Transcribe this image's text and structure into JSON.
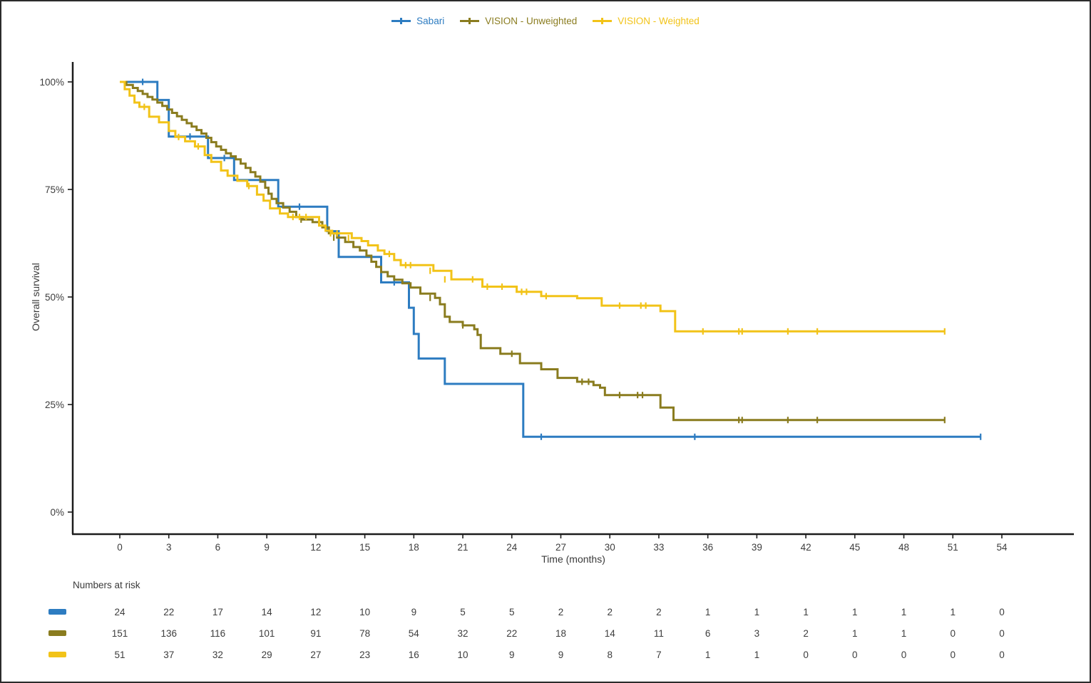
{
  "figure": {
    "x_axis_title": "Time (months)",
    "y_axis_title": "Overall survival"
  },
  "chart_data": {
    "type": "line",
    "subtype": "kaplan-meier-step",
    "title": "",
    "xlabel": "Time (months)",
    "ylabel": "Overall survival",
    "xlim": [
      0,
      57
    ],
    "ylim": [
      0,
      100
    ],
    "grid": false,
    "legend_position": "top-center",
    "x_ticks": [
      0,
      3,
      6,
      9,
      12,
      15,
      18,
      21,
      24,
      27,
      30,
      33,
      36,
      39,
      42,
      45,
      48,
      51,
      54
    ],
    "y_ticks": [
      {
        "value": 100,
        "label": "100%"
      },
      {
        "value": 75,
        "label": "75%"
      },
      {
        "value": 50,
        "label": "50%"
      },
      {
        "value": 25,
        "label": "25%"
      },
      {
        "value": 0,
        "label": "0%"
      }
    ],
    "axis_color": "#1c1c1c",
    "text_color": "#3d3d3d",
    "series": [
      {
        "name": "Sabari",
        "color": "#2d7cc1",
        "steps": [
          [
            0,
            100
          ],
          [
            2.3,
            95.8
          ],
          [
            3.0,
            87.3
          ],
          [
            5.4,
            82.3
          ],
          [
            7.0,
            77.2
          ],
          [
            9.7,
            71.0
          ],
          [
            12.7,
            65.3
          ],
          [
            13.4,
            59.3
          ],
          [
            16.0,
            53.4
          ],
          [
            17.7,
            47.5
          ],
          [
            18.0,
            41.4
          ],
          [
            18.3,
            35.7
          ],
          [
            19.9,
            29.8
          ],
          [
            24.7,
            17.5
          ],
          [
            52.7,
            17.5
          ]
        ],
        "censor_marks": [
          [
            1.4,
            100
          ],
          [
            4.3,
            87.3
          ],
          [
            6.4,
            82.3
          ],
          [
            11.0,
            71.0
          ],
          [
            16.8,
            53.4
          ],
          [
            25.8,
            17.5
          ],
          [
            35.2,
            17.5
          ],
          [
            52.7,
            17.5
          ]
        ]
      },
      {
        "name": "VISION - Unweighted",
        "color": "#8a7c1f",
        "steps": [
          [
            0,
            100
          ],
          [
            0.4,
            99.3
          ],
          [
            0.8,
            98.6
          ],
          [
            1.1,
            97.9
          ],
          [
            1.4,
            97.2
          ],
          [
            1.7,
            96.5
          ],
          [
            2.0,
            95.9
          ],
          [
            2.3,
            95.2
          ],
          [
            2.6,
            94.4
          ],
          [
            2.9,
            93.6
          ],
          [
            3.2,
            92.8
          ],
          [
            3.5,
            92.0
          ],
          [
            3.8,
            91.2
          ],
          [
            4.1,
            90.4
          ],
          [
            4.4,
            89.6
          ],
          [
            4.7,
            88.8
          ],
          [
            5.0,
            88.0
          ],
          [
            5.3,
            87.0
          ],
          [
            5.6,
            86.0
          ],
          [
            5.9,
            85.0
          ],
          [
            6.2,
            84.2
          ],
          [
            6.5,
            83.4
          ],
          [
            6.8,
            82.7
          ],
          [
            7.1,
            82.0
          ],
          [
            7.4,
            81.0
          ],
          [
            7.7,
            80.0
          ],
          [
            8.0,
            79.0
          ],
          [
            8.3,
            78.0
          ],
          [
            8.6,
            76.8
          ],
          [
            8.9,
            75.4
          ],
          [
            9.1,
            74.0
          ],
          [
            9.3,
            72.8
          ],
          [
            9.6,
            71.8
          ],
          [
            10.0,
            70.8
          ],
          [
            10.4,
            69.8
          ],
          [
            10.8,
            68.6
          ],
          [
            11.2,
            68.0
          ],
          [
            11.8,
            67.4
          ],
          [
            12.4,
            66.2
          ],
          [
            12.8,
            64.8
          ],
          [
            13.3,
            63.8
          ],
          [
            13.8,
            62.8
          ],
          [
            14.3,
            61.6
          ],
          [
            14.7,
            60.8
          ],
          [
            15.1,
            59.6
          ],
          [
            15.4,
            58.2
          ],
          [
            15.7,
            57.0
          ],
          [
            16.0,
            55.8
          ],
          [
            16.4,
            54.8
          ],
          [
            16.8,
            54.0
          ],
          [
            17.3,
            53.2
          ],
          [
            17.8,
            52.2
          ],
          [
            18.4,
            50.8
          ],
          [
            19.3,
            49.8
          ],
          [
            19.6,
            48.3
          ],
          [
            19.9,
            45.4
          ],
          [
            20.2,
            44.2
          ],
          [
            21.0,
            43.4
          ],
          [
            21.7,
            42.5
          ],
          [
            21.9,
            41.2
          ],
          [
            22.1,
            38.1
          ],
          [
            23.3,
            36.8
          ],
          [
            24.5,
            34.6
          ],
          [
            25.8,
            33.2
          ],
          [
            26.8,
            31.2
          ],
          [
            28.0,
            30.3
          ],
          [
            29.0,
            29.5
          ],
          [
            29.4,
            28.9
          ],
          [
            29.7,
            27.2
          ],
          [
            33.1,
            24.3
          ],
          [
            33.9,
            21.4
          ],
          [
            50.5,
            21.4
          ]
        ],
        "censor_marks": [
          [
            11.1,
            68.0
          ],
          [
            13.1,
            63.8
          ],
          [
            19.0,
            49.8
          ],
          [
            21.0,
            43.4
          ],
          [
            24.0,
            36.8
          ],
          [
            28.3,
            30.3
          ],
          [
            28.7,
            30.3
          ],
          [
            30.6,
            27.2
          ],
          [
            31.7,
            27.2
          ],
          [
            32.0,
            27.2
          ],
          [
            37.9,
            21.4
          ],
          [
            38.1,
            21.4
          ],
          [
            40.9,
            21.4
          ],
          [
            42.7,
            21.4
          ],
          [
            50.5,
            21.4
          ]
        ]
      },
      {
        "name": "VISION - Weighted",
        "color": "#f2c318",
        "steps": [
          [
            0,
            100
          ],
          [
            0.3,
            98.3
          ],
          [
            0.6,
            96.8
          ],
          [
            0.9,
            95.2
          ],
          [
            1.2,
            94.2
          ],
          [
            1.8,
            91.9
          ],
          [
            2.4,
            90.6
          ],
          [
            3.0,
            88.6
          ],
          [
            3.4,
            87.2
          ],
          [
            4.0,
            86.2
          ],
          [
            4.6,
            85.0
          ],
          [
            5.2,
            83.0
          ],
          [
            5.6,
            81.4
          ],
          [
            6.2,
            79.4
          ],
          [
            6.6,
            78.2
          ],
          [
            7.2,
            77.0
          ],
          [
            7.8,
            75.8
          ],
          [
            8.4,
            73.8
          ],
          [
            8.8,
            72.4
          ],
          [
            9.2,
            70.6
          ],
          [
            9.8,
            69.4
          ],
          [
            10.3,
            68.6
          ],
          [
            12.2,
            66.6
          ],
          [
            12.6,
            65.4
          ],
          [
            13.0,
            64.8
          ],
          [
            14.2,
            63.7
          ],
          [
            14.8,
            63.0
          ],
          [
            15.2,
            62.0
          ],
          [
            15.8,
            60.8
          ],
          [
            16.2,
            60.0
          ],
          [
            16.8,
            58.6
          ],
          [
            17.2,
            57.4
          ],
          [
            19.2,
            56.1
          ],
          [
            20.3,
            54.1
          ],
          [
            22.2,
            52.4
          ],
          [
            24.3,
            51.2
          ],
          [
            25.8,
            50.2
          ],
          [
            28.0,
            49.7
          ],
          [
            29.5,
            48.0
          ],
          [
            33.1,
            46.7
          ],
          [
            34.0,
            42.0
          ],
          [
            50.5,
            42.0
          ]
        ],
        "censor_marks": [
          [
            1.5,
            94.2
          ],
          [
            3.6,
            87.2
          ],
          [
            4.8,
            85.0
          ],
          [
            7.9,
            75.8
          ],
          [
            10.6,
            68.6
          ],
          [
            11.0,
            68.6
          ],
          [
            11.4,
            68.6
          ],
          [
            12.9,
            64.8
          ],
          [
            13.3,
            64.8
          ],
          [
            14.0,
            63.7
          ],
          [
            16.5,
            60.0
          ],
          [
            17.5,
            57.4
          ],
          [
            17.8,
            57.4
          ],
          [
            19.0,
            56.1
          ],
          [
            19.9,
            54.1
          ],
          [
            21.6,
            54.1
          ],
          [
            22.5,
            52.4
          ],
          [
            23.4,
            52.4
          ],
          [
            24.6,
            51.2
          ],
          [
            24.9,
            51.2
          ],
          [
            26.1,
            50.2
          ],
          [
            30.6,
            48.0
          ],
          [
            31.9,
            48.0
          ],
          [
            32.2,
            48.0
          ],
          [
            35.7,
            42.0
          ],
          [
            37.9,
            42.0
          ],
          [
            38.1,
            42.0
          ],
          [
            40.9,
            42.0
          ],
          [
            42.7,
            42.0
          ],
          [
            50.5,
            42.0
          ]
        ]
      }
    ],
    "numbers_at_risk": {
      "header": "Numbers at risk",
      "times": [
        0,
        3,
        6,
        9,
        12,
        15,
        18,
        21,
        24,
        27,
        30,
        33,
        36,
        39,
        42,
        45,
        48,
        51,
        54
      ],
      "rows": [
        {
          "series": "Sabari",
          "color": "#2d7cc1",
          "values": [
            24,
            22,
            17,
            14,
            12,
            10,
            9,
            5,
            5,
            2,
            2,
            2,
            1,
            1,
            1,
            1,
            1,
            1,
            0
          ]
        },
        {
          "series": "VISION - Unweighted",
          "color": "#8a7c1f",
          "values": [
            151,
            136,
            116,
            101,
            91,
            78,
            54,
            32,
            22,
            18,
            14,
            11,
            6,
            3,
            2,
            1,
            1,
            0,
            0
          ]
        },
        {
          "series": "VISION - Weighted",
          "color": "#f2c318",
          "values": [
            51,
            37,
            32,
            29,
            27,
            23,
            16,
            10,
            9,
            9,
            8,
            7,
            1,
            1,
            0,
            0,
            0,
            0,
            0
          ]
        }
      ]
    }
  }
}
